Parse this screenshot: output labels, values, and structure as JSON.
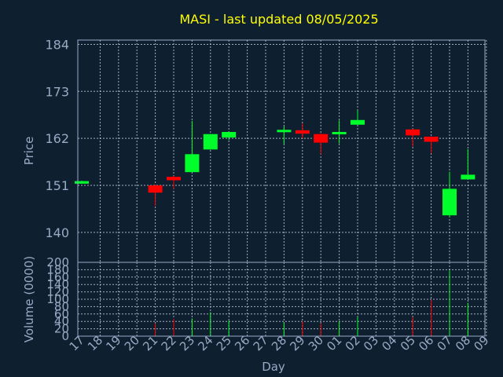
{
  "chart_data": {
    "type": "candlestick",
    "title": "MASI - last updated 08/05/2025",
    "xlabel": "Day",
    "ylabel_price": "Price",
    "ylabel_volume": "Volume (0000)",
    "x_ticks": [
      "17",
      "18",
      "19",
      "20",
      "21",
      "22",
      "23",
      "24",
      "25",
      "26",
      "27",
      "28",
      "29",
      "30",
      "01",
      "02",
      "03",
      "04",
      "05",
      "06",
      "07",
      "08",
      "09"
    ],
    "price_ylim": [
      133,
      185
    ],
    "price_ticks": [
      140,
      151,
      162,
      173,
      184
    ],
    "volume_ylim": [
      0,
      200
    ],
    "volume_ticks": [
      0,
      20,
      40,
      60,
      80,
      100,
      120,
      140,
      160,
      180,
      200
    ],
    "grid": true,
    "colors": {
      "up": "#00ff2a",
      "down": "#ff0000",
      "title": "#ffff00",
      "axis": "#9aa9c4",
      "background": "#0e1f30"
    },
    "candles": [
      {
        "day": "17",
        "open": 151.4,
        "high": 152.1,
        "low": 151.4,
        "close": 152.0,
        "volume": 0
      },
      {
        "day": "21",
        "open": 151.0,
        "high": 151.2,
        "low": 146.2,
        "close": 149.3,
        "volume": 35
      },
      {
        "day": "22",
        "open": 153.0,
        "high": 153.2,
        "low": 150.2,
        "close": 152.2,
        "volume": 47
      },
      {
        "day": "23",
        "open": 154.1,
        "high": 166.1,
        "low": 154.1,
        "close": 158.3,
        "volume": 48
      },
      {
        "day": "24",
        "open": 159.4,
        "high": 163.0,
        "low": 159.4,
        "close": 163.0,
        "volume": 65
      },
      {
        "day": "25",
        "open": 162.2,
        "high": 163.6,
        "low": 161.6,
        "close": 163.5,
        "volume": 42
      },
      {
        "day": "28",
        "open": 163.6,
        "high": 164.8,
        "low": 160.7,
        "close": 164.0,
        "volume": 37
      },
      {
        "day": "29",
        "open": 163.9,
        "high": 165.5,
        "low": 162.0,
        "close": 163.1,
        "volume": 40
      },
      {
        "day": "30",
        "open": 163.0,
        "high": 163.2,
        "low": 158.3,
        "close": 161.0,
        "volume": 35
      },
      {
        "day": "01",
        "open": 163.4,
        "high": 166.2,
        "low": 160.8,
        "close": 163.5,
        "volume": 40
      },
      {
        "day": "02",
        "open": 165.2,
        "high": 168.5,
        "low": 165.2,
        "close": 166.3,
        "volume": 52
      },
      {
        "day": "05",
        "open": 164.1,
        "high": 164.3,
        "low": 160.1,
        "close": 162.7,
        "volume": 52
      },
      {
        "day": "06",
        "open": 162.4,
        "high": 162.4,
        "low": 158.6,
        "close": 161.2,
        "volume": 98
      },
      {
        "day": "07",
        "open": 144.0,
        "high": 154.2,
        "low": 143.5,
        "close": 150.2,
        "volume": 178
      },
      {
        "day": "08",
        "open": 152.4,
        "high": 159.5,
        "low": 152.4,
        "close": 153.5,
        "volume": 90
      }
    ]
  }
}
